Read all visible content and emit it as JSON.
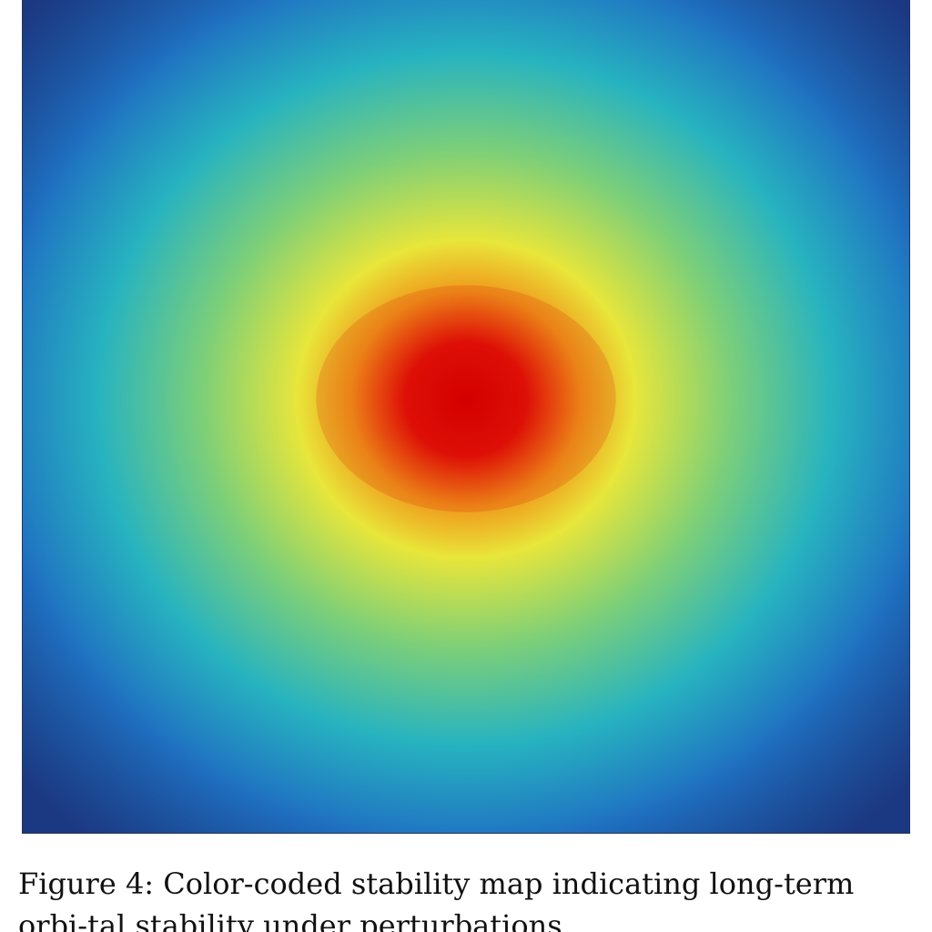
{
  "figure": {
    "label": "Figure 4:",
    "caption": "Color-coded stability map indicating long-term orbi-tal stability under perturbations."
  },
  "chart_data": {
    "type": "heatmap",
    "title": "",
    "xlabel": "",
    "ylabel": "",
    "grid": false,
    "legend": "none",
    "colormap": [
      "#1f3f8f",
      "#1f6fc2",
      "#27b3c0",
      "#7ccf79",
      "#e8e63a",
      "#f09a1c",
      "#d40000"
    ],
    "peak": {
      "center_x": 0.5,
      "center_y": 0.48,
      "value": 1.0
    }
  }
}
